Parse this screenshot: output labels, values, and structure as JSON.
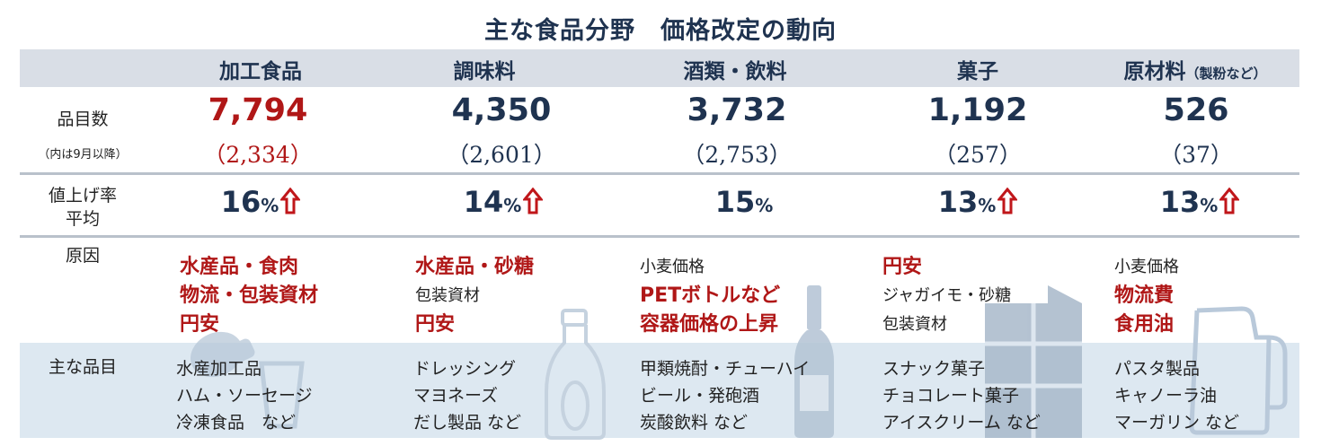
{
  "title": "主な食品分野　価格改定の動向",
  "row_labels": {
    "count": "品目数",
    "count_sub": "（内は9月以降）",
    "rate_line1": "値上げ率",
    "rate_line2": "平均",
    "cause": "原因",
    "items": "主な品目"
  },
  "columns": [
    {
      "header": "加工食品",
      "header_sub": "",
      "count": "7,794",
      "count_after_sep": "（2,334）",
      "rate": "16",
      "rate_unit": "%",
      "rising": true,
      "causes": [
        {
          "text": "水産品・食肉",
          "emphasis": true
        },
        {
          "text": "物流・包装資材",
          "emphasis": true
        },
        {
          "text": "円安",
          "emphasis": true
        }
      ],
      "items": [
        "水産加工品",
        "ハム・ソーセージ",
        "冷凍食品　など"
      ]
    },
    {
      "header": "調味料",
      "header_sub": "",
      "count": "4,350",
      "count_after_sep": "（2,601）",
      "rate": "14",
      "rate_unit": "%",
      "rising": true,
      "causes": [
        {
          "text": "水産品・砂糖",
          "emphasis": true
        },
        {
          "text": "包装資材",
          "emphasis": false
        },
        {
          "text": "円安",
          "emphasis": true
        }
      ],
      "items": [
        "ドレッシング",
        "マヨネーズ",
        "だし製品 など"
      ]
    },
    {
      "header": "酒類・飲料",
      "header_sub": "",
      "count": "3,732",
      "count_after_sep": "（2,753）",
      "rate": "15",
      "rate_unit": "%",
      "rising": false,
      "causes": [
        {
          "text": "小麦価格",
          "emphasis": false
        },
        {
          "text": "PETボトルなど",
          "emphasis": true
        },
        {
          "text": "容器価格の上昇",
          "emphasis": true
        }
      ],
      "items": [
        "甲類焼酎・チューハイ",
        "ビール・発砲酒",
        "炭酸飲料 など"
      ]
    },
    {
      "header": "菓子",
      "header_sub": "",
      "count": "1,192",
      "count_after_sep": "（257）",
      "rate": "13",
      "rate_unit": "%",
      "rising": true,
      "causes": [
        {
          "text": "円安",
          "emphasis": true
        },
        {
          "text": "ジャガイモ・砂糖",
          "emphasis": false
        },
        {
          "text": "包装資材",
          "emphasis": false
        }
      ],
      "items": [
        "スナック菓子",
        "チョコレート菓子",
        "アイスクリーム など"
      ]
    },
    {
      "header": "原材料",
      "header_sub": "（製粉など）",
      "count": "526",
      "count_after_sep": "（37）",
      "rate": "13",
      "rate_unit": "%",
      "rising": true,
      "causes": [
        {
          "text": "小麦価格",
          "emphasis": false
        },
        {
          "text": "物流費",
          "emphasis": true
        },
        {
          "text": "食用油",
          "emphasis": true
        }
      ],
      "items": [
        "パスタ製品",
        "キャノーラ油",
        "マーガリン など"
      ]
    }
  ],
  "colors": {
    "navy": "#1f3350",
    "red": "#b01717",
    "header_band": "#d9dee6",
    "bottom_band": "#dde8f1",
    "arrow": "#c0161a"
  },
  "decorations": [
    "can-bottle-icon",
    "bottle-icon",
    "wine-bottle-icon",
    "chocolate-bar-icon",
    "oil-bottle-icon"
  ]
}
